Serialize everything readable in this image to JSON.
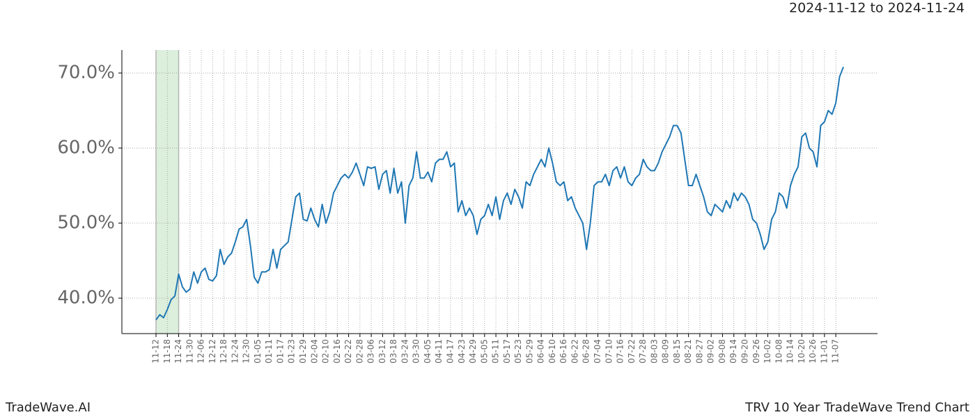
{
  "chart_data": {
    "type": "line",
    "subtitle": "2024-11-12 to 2024-11-24",
    "footer_left": "TradeWave.AI",
    "footer_right": "TRV 10 Year TradeWave Trend Chart",
    "categories": [
      "11-12",
      null,
      null,
      "11-18",
      null,
      null,
      "11-24",
      null,
      null,
      "11-30",
      null,
      null,
      "12-06",
      null,
      null,
      "12-12",
      null,
      null,
      "12-18",
      null,
      null,
      "12-24",
      null,
      null,
      "12-30",
      null,
      null,
      "01-05",
      null,
      null,
      "01-11",
      null,
      null,
      "01-17",
      null,
      null,
      "01-23",
      null,
      null,
      "01-29",
      null,
      null,
      "02-04",
      null,
      null,
      "02-10",
      null,
      null,
      "02-16",
      null,
      null,
      "02-22",
      null,
      null,
      "02-28",
      null,
      null,
      "03-06",
      null,
      null,
      "03-12",
      null,
      null,
      "03-18",
      null,
      null,
      "03-24",
      null,
      null,
      "03-30",
      null,
      null,
      "04-05",
      null,
      null,
      "04-11",
      null,
      null,
      "04-17",
      null,
      null,
      "04-23",
      null,
      null,
      "04-29",
      null,
      null,
      "05-05",
      null,
      null,
      "05-11",
      null,
      null,
      "05-17",
      null,
      null,
      "05-23",
      null,
      null,
      "05-29",
      null,
      null,
      "06-04",
      null,
      null,
      "06-10",
      null,
      null,
      "06-16",
      null,
      null,
      "06-22",
      null,
      null,
      "06-28",
      null,
      null,
      "07-04",
      null,
      null,
      "07-10",
      null,
      null,
      "07-16",
      null,
      null,
      "07-22",
      null,
      null,
      "07-28",
      null,
      null,
      "08-03",
      null,
      null,
      "08-09",
      null,
      null,
      "08-15",
      null,
      null,
      "08-21",
      null,
      null,
      "08-27",
      null,
      null,
      "09-02",
      null,
      null,
      "09-08",
      null,
      null,
      "09-14",
      null,
      null,
      "09-20",
      null,
      null,
      "09-26",
      null,
      null,
      "10-02",
      null,
      null,
      "10-08",
      null,
      null,
      "10-14",
      null,
      null,
      "10-20",
      null,
      null,
      "10-26",
      null,
      null,
      "11-01",
      null,
      null,
      "11-07",
      null,
      null
    ],
    "values": [
      37.1,
      37.8,
      37.4,
      38.5,
      39.8,
      40.3,
      43.2,
      41.5,
      40.8,
      41.2,
      43.5,
      42.0,
      43.5,
      44.0,
      42.5,
      42.3,
      43.0,
      46.5,
      44.5,
      45.5,
      46.0,
      47.5,
      49.2,
      49.5,
      50.5,
      47.0,
      42.8,
      42.0,
      43.5,
      43.5,
      43.8,
      46.5,
      44.0,
      46.5,
      47.0,
      47.5,
      50.5,
      53.5,
      54.0,
      50.5,
      50.3,
      52.0,
      50.5,
      49.5,
      52.5,
      50.0,
      51.5,
      54.0,
      55.0,
      56.0,
      56.5,
      56.0,
      56.8,
      58.0,
      56.5,
      55.0,
      57.5,
      57.3,
      57.5,
      54.5,
      56.5,
      57.0,
      54.0,
      57.3,
      54.0,
      55.5,
      50.0,
      55.0,
      56.0,
      59.5,
      56.0,
      56.0,
      56.8,
      55.5,
      58.0,
      58.5,
      58.5,
      59.5,
      57.5,
      58.0,
      51.5,
      53.0,
      51.0,
      52.0,
      51.0,
      48.5,
      50.5,
      51.0,
      52.5,
      51.0,
      53.5,
      50.5,
      53.0,
      54.0,
      52.5,
      54.5,
      53.5,
      52.0,
      55.5,
      55.0,
      56.5,
      57.5,
      58.5,
      57.5,
      60.0,
      58.0,
      55.5,
      55.0,
      55.5,
      53.0,
      53.5,
      52.0,
      51.0,
      50.0,
      46.5,
      50.0,
      55.0,
      55.5,
      55.5,
      56.5,
      55.0,
      57.0,
      57.5,
      56.0,
      57.5,
      55.5,
      55.0,
      56.0,
      56.5,
      58.5,
      57.5,
      57.0,
      57.0,
      58.0,
      59.5,
      60.5,
      61.5,
      63.0,
      63.0,
      62.0,
      58.5,
      55.0,
      55.0,
      56.5,
      55.0,
      53.5,
      51.5,
      51.0,
      52.5,
      52.0,
      51.5,
      53.0,
      52.0,
      54.0,
      53.0,
      54.0,
      53.5,
      52.5,
      50.5,
      50.0,
      48.5,
      46.5,
      47.5,
      50.5,
      51.5,
      54.0,
      53.5,
      52.0,
      55.0,
      56.5,
      57.5,
      61.5,
      62.0,
      60.0,
      59.5,
      57.5,
      63.0,
      63.5,
      65.0,
      64.5,
      66.0,
      69.5,
      70.8
    ],
    "color": "#1f77b4",
    "highlight": {
      "from": "11-12",
      "to": "11-24",
      "color": "#dcefdc"
    },
    "ylim": [
      35.28,
      73.06
    ],
    "yticks": [
      {
        "value": 40,
        "label": "40.0%"
      },
      {
        "value": 50,
        "label": "50.0%"
      },
      {
        "value": 60,
        "label": "60.0%"
      },
      {
        "value": 70,
        "label": "70.0%"
      }
    ],
    "grid": true
  }
}
